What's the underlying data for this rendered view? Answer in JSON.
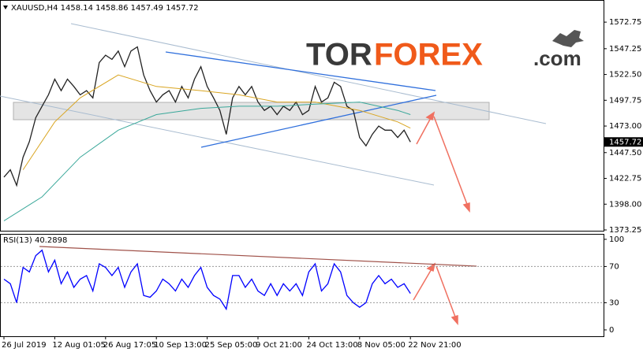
{
  "logo": {
    "parts": [
      "TOR",
      "FOREX",
      ".com"
    ]
  },
  "chart_data": [
    {
      "type": "line",
      "header": "XAUUSD,H4  1458.14 1458.86 1457.49 1457.72",
      "categories": [
        "26 Jul 2019",
        null,
        null,
        null,
        null,
        null,
        null,
        null,
        "12 Aug 01:05",
        null,
        null,
        null,
        null,
        null,
        null,
        null,
        "26 Aug 17:05",
        null,
        null,
        null,
        null,
        null,
        null,
        null,
        "10 Sep 13:00",
        null,
        null,
        null,
        null,
        null,
        null,
        null,
        "25 Sep 05:00",
        null,
        null,
        null,
        null,
        null,
        null,
        null,
        "9 Oct 21:00",
        null,
        null,
        null,
        null,
        null,
        null,
        null,
        "24 Oct 13:00",
        null,
        null,
        null,
        null,
        null,
        null,
        null,
        "8 Nov 05:00",
        null,
        null,
        null,
        null,
        null,
        null,
        null,
        "22 Nov 21:00"
      ],
      "series": [
        {
          "color": "#222222",
          "values": [
            1424,
            1431,
            1416,
            1443,
            1458,
            1481,
            1492,
            1503,
            1518,
            1507,
            1518,
            1511,
            1503,
            1507,
            1500,
            1534,
            1541,
            1537,
            1545,
            1530,
            1545,
            1549,
            1522,
            1507,
            1496,
            1503,
            1507,
            1496,
            1511,
            1500,
            1518,
            1530,
            1511,
            1500,
            1488,
            1465,
            1500,
            1511,
            1503,
            1511,
            1496,
            1488,
            1492,
            1484,
            1492,
            1488,
            1496,
            1484,
            1488,
            1511,
            1496,
            1500,
            1515,
            1511,
            1492,
            1488,
            1462,
            1454,
            1465,
            1473,
            1469,
            1469,
            1462,
            1469,
            1457.72
          ]
        },
        {
          "color": "#d9a521",
          "x": [
            3,
            8,
            12,
            18,
            24,
            31,
            37,
            43,
            49,
            56,
            62,
            64
          ],
          "values": [
            1431,
            1477,
            1500,
            1522,
            1511,
            1507,
            1503,
            1496,
            1496,
            1488,
            1477,
            1471
          ]
        },
        {
          "color": "#3aa89a",
          "x": [
            0,
            6,
            12,
            18,
            24,
            31,
            37,
            43,
            49,
            56,
            62,
            64
          ],
          "values": [
            1382,
            1405,
            1443,
            1469,
            1484,
            1490,
            1492,
            1492,
            1494,
            1496,
            1488,
            1484
          ]
        }
      ],
      "ylim": [
        1372.5,
        1594
      ],
      "yticks": [
        1572.75,
        1547.25,
        {
          "value": 1522.5,
          "label": "1522.50"
        },
        1497.75,
        {
          "value": 1473,
          "label": "1473.00"
        },
        {
          "value": 1447.5,
          "label": "1447.50"
        },
        1422.75,
        {
          "value": 1398,
          "label": "1398.00"
        },
        1373.25
      ]
    },
    {
      "type": "line",
      "header": "RSI(13) 40.2898",
      "series": [
        {
          "color": "#0000ff",
          "values": [
            56,
            51,
            30,
            69,
            64,
            82,
            88,
            64,
            77,
            51,
            64,
            47,
            56,
            60,
            43,
            73,
            69,
            60,
            69,
            47,
            64,
            73,
            38,
            36,
            43,
            56,
            51,
            43,
            56,
            47,
            60,
            69,
            47,
            38,
            34,
            23,
            60,
            60,
            47,
            56,
            43,
            38,
            51,
            38,
            51,
            43,
            51,
            38,
            64,
            73,
            43,
            51,
            73,
            64,
            38,
            30,
            25,
            30,
            51,
            60,
            51,
            56,
            47,
            51,
            40.2898
          ]
        }
      ],
      "ylim": [
        -7,
        106
      ],
      "yticks": [
        100,
        70,
        30,
        0
      ],
      "levels": [
        70,
        30
      ]
    }
  ]
}
